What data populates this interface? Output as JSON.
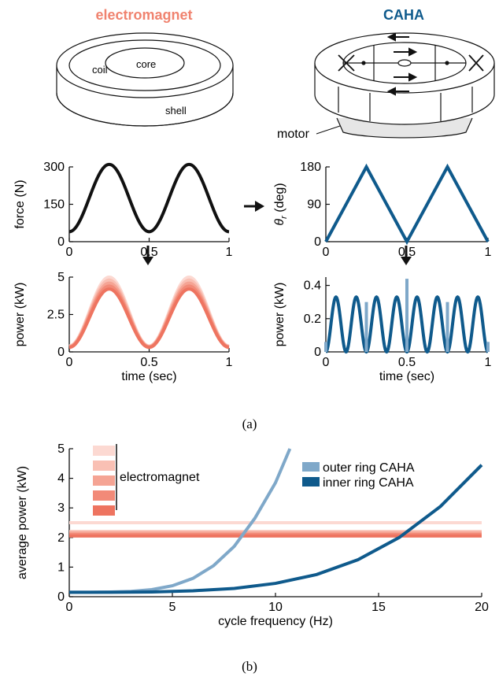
{
  "colors": {
    "electromagnet": "#f0836f",
    "electromagnet_shades": [
      "#fcd9d2",
      "#f9c0b4",
      "#f5a494",
      "#f28a78",
      "#ee7460"
    ],
    "caha_inner": "#0f5a8c",
    "caha_outer": "#7fa8c9",
    "black": "#111111"
  },
  "panel_a": {
    "label": "(a)",
    "electromagnet_title": "electromagnet",
    "caha_title": "CAHA",
    "electromagnet_parts": {
      "coil": "coil",
      "core": "core",
      "shell": "shell"
    },
    "caha_parts": {
      "motor": "motor"
    }
  },
  "panel_b": {
    "label": "(b)"
  },
  "chart_data": [
    {
      "type": "line",
      "id": "electromagnet_force",
      "xlabel": "time (sec)",
      "ylabel": "force (N)",
      "xlim": [
        0,
        1
      ],
      "ylim": [
        0,
        300
      ],
      "xticks": [
        "0",
        "0.5",
        "1"
      ],
      "yticks": [
        "0",
        "150",
        "300"
      ],
      "x": [
        0,
        0.125,
        0.25,
        0.375,
        0.5,
        0.625,
        0.75,
        0.875,
        1
      ],
      "series": [
        {
          "values": [
            40,
            175,
            310,
            175,
            40,
            175,
            310,
            175,
            40
          ],
          "color": "#111111"
        }
      ]
    },
    {
      "type": "line",
      "id": "caha_angle",
      "xlabel": "time (sec)",
      "ylabel": "θr (deg)",
      "xlim": [
        0,
        1
      ],
      "ylim": [
        0,
        180
      ],
      "xticks": [
        "0",
        "0.5",
        "1"
      ],
      "yticks": [
        "0",
        "90",
        "180"
      ],
      "x": [
        0,
        0.25,
        0.5,
        0.75,
        1
      ],
      "series": [
        {
          "values": [
            0,
            180,
            0,
            180,
            0
          ],
          "color": "#0f5a8c"
        }
      ]
    },
    {
      "type": "line",
      "id": "electromagnet_power",
      "xlabel": "time (sec)",
      "ylabel": "power (kW)",
      "xlim": [
        0,
        1
      ],
      "ylim": [
        0,
        5
      ],
      "xticks": [
        "0",
        "0.5",
        "1"
      ],
      "yticks": [
        "0",
        "2.5",
        "5"
      ],
      "x": [
        0,
        0.125,
        0.25,
        0.375,
        0.5,
        0.625,
        0.75,
        0.875,
        1
      ],
      "series": [
        {
          "peak": 5.0,
          "base": 0.4,
          "color": "#fcd9d2"
        },
        {
          "peak": 4.8,
          "base": 0.38,
          "color": "#f9c0b4"
        },
        {
          "peak": 4.6,
          "base": 0.35,
          "color": "#f5a494"
        },
        {
          "peak": 4.4,
          "base": 0.33,
          "color": "#f28a78"
        },
        {
          "peak": 4.2,
          "base": 0.3,
          "color": "#ee7460"
        }
      ]
    },
    {
      "type": "line",
      "id": "caha_power",
      "xlabel": "time (sec)",
      "ylabel": "power (kW)",
      "xlim": [
        0,
        1
      ],
      "ylim": [
        0,
        0.45
      ],
      "xticks": [
        "0",
        "0.5",
        "1"
      ],
      "yticks": [
        "0",
        "0.2",
        "0.4"
      ],
      "series": [
        {
          "name": "",
          "peak": 0.33,
          "color": "#0f5a8c"
        }
      ],
      "spikes": [
        {
          "x": 0,
          "value": 0.06
        },
        {
          "x": 0.25,
          "value": 0.3
        },
        {
          "x": 0.5,
          "value": 0.44
        },
        {
          "x": 0.75,
          "value": 0.3
        },
        {
          "x": 1,
          "value": 0.06
        }
      ],
      "spike_color": "#7fa8c9"
    },
    {
      "type": "line",
      "id": "average_power_vs_frequency",
      "xlabel": "cycle frequency (Hz)",
      "ylabel": "average power (kW)",
      "xlim": [
        0,
        20
      ],
      "ylim": [
        0,
        5
      ],
      "xticks": [
        "0",
        "5",
        "10",
        "15",
        "20"
      ],
      "yticks": [
        "0",
        "1",
        "2",
        "3",
        "4",
        "5"
      ],
      "legend_placement": "top-right",
      "series": [
        {
          "name": "outer ring CAHA",
          "color": "#7fa8c9",
          "x": [
            0,
            1,
            2,
            3,
            4,
            5,
            6,
            7,
            8,
            9,
            10,
            10.7
          ],
          "y": [
            0.15,
            0.15,
            0.16,
            0.18,
            0.24,
            0.37,
            0.62,
            1.05,
            1.7,
            2.65,
            3.85,
            5.0
          ]
        },
        {
          "name": "inner ring CAHA",
          "color": "#0f5a8c",
          "x": [
            0,
            2,
            4,
            6,
            8,
            10,
            12,
            14,
            16,
            18,
            20
          ],
          "y": [
            0.15,
            0.15,
            0.16,
            0.2,
            0.28,
            0.45,
            0.75,
            1.25,
            2.0,
            3.05,
            4.45
          ]
        }
      ],
      "electromagnet_levels": [
        2.5,
        2.2,
        2.15,
        2.1,
        2.05
      ],
      "electromagnet_legend_label": "electromagnet"
    }
  ]
}
